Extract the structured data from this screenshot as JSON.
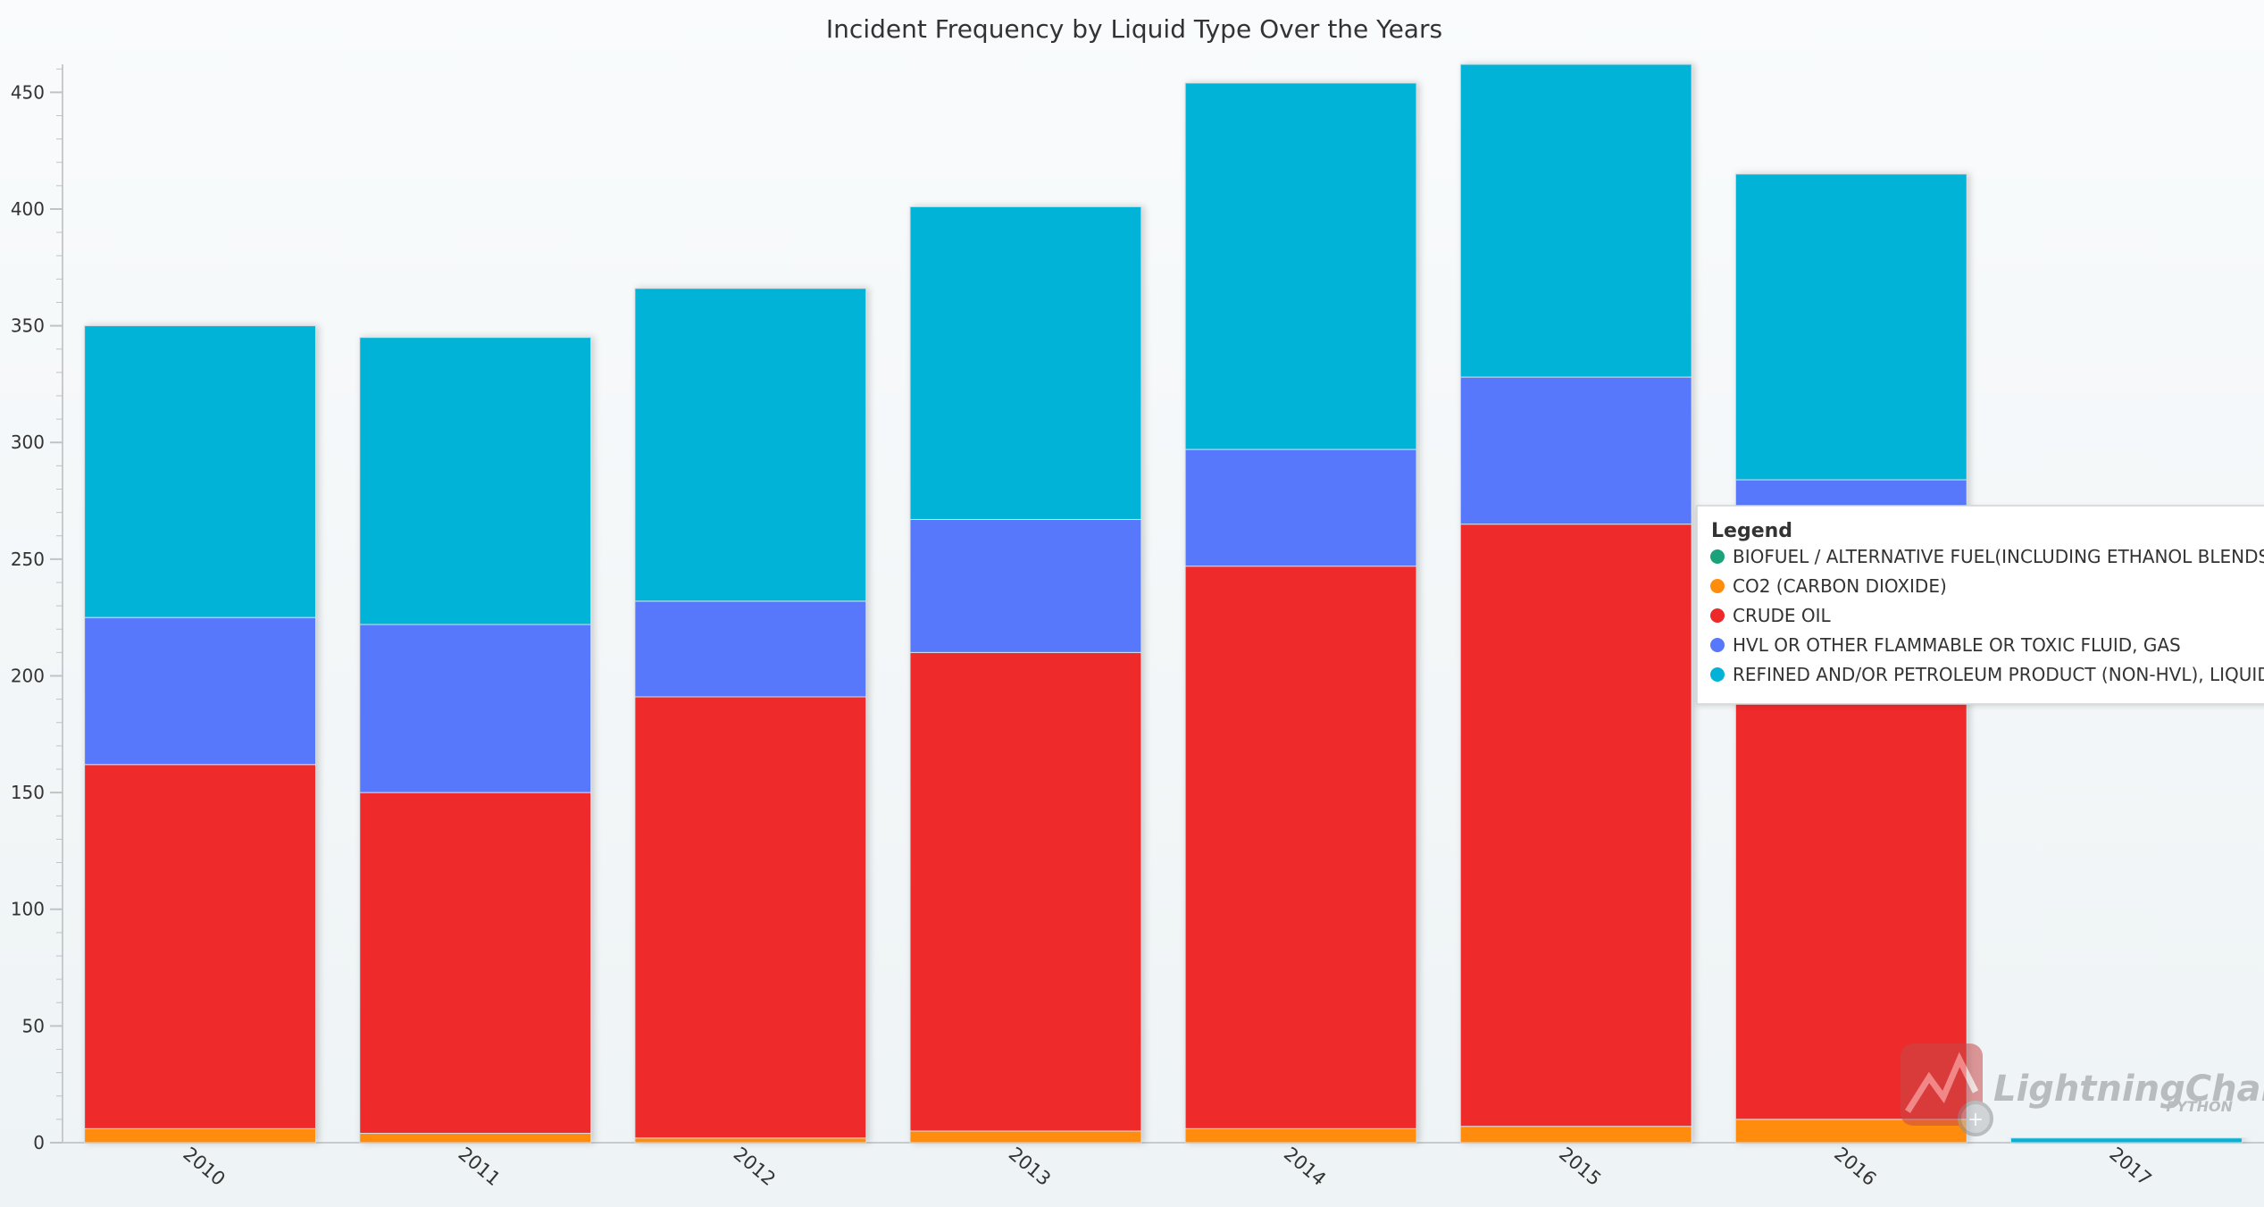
{
  "chart_data": {
    "type": "bar",
    "stacked": true,
    "title": "Incident Frequency by Liquid Type Over the Years",
    "xlabel": "",
    "ylabel": "",
    "categories": [
      "2010",
      "2011",
      "2012",
      "2013",
      "2014",
      "2015",
      "2016",
      "2017"
    ],
    "ylim": [
      0,
      462
    ],
    "yticks": [
      0,
      50,
      100,
      150,
      200,
      250,
      300,
      350,
      400,
      450
    ],
    "series": [
      {
        "name": "BIOFUEL / ALTERNATIVE FUEL(INCLUDING ETHANOL BLENDS)",
        "color": "#1aa37a",
        "values": [
          0,
          0,
          0,
          0,
          0,
          0,
          0,
          0
        ]
      },
      {
        "name": "CO2 (CARBON DIOXIDE)",
        "color": "#ff8c0a",
        "values": [
          6,
          4,
          2,
          5,
          6,
          7,
          10,
          0
        ]
      },
      {
        "name": "CRUDE OIL",
        "color": "#ee2929",
        "values": [
          156,
          146,
          189,
          205,
          241,
          258,
          195,
          0
        ]
      },
      {
        "name": "HVL OR OTHER FLAMMABLE OR TOXIC FLUID, GAS",
        "color": "#5878fc",
        "values": [
          63,
          72,
          41,
          57,
          50,
          63,
          79,
          0
        ]
      },
      {
        "name": "REFINED AND/OR PETROLEUM PRODUCT (NON-HVL), LIQUID",
        "color": "#03b3d7",
        "values": [
          125,
          123,
          134,
          134,
          157,
          134,
          131,
          2
        ]
      }
    ],
    "legend": {
      "title": "Legend",
      "position": "right"
    },
    "grid": false
  },
  "watermark": {
    "brand": "LightningChart",
    "sub": "PYTHON"
  }
}
